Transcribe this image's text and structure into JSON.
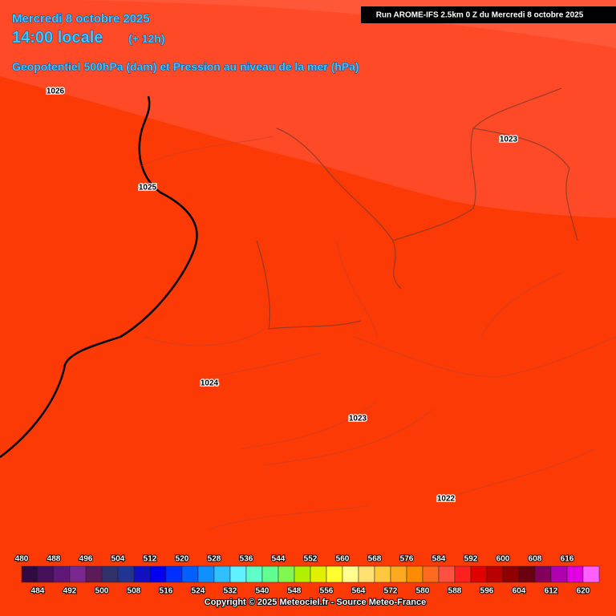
{
  "header": {
    "date": "Mercredi 8 octobre 2025",
    "time": "14:00 locale",
    "lead": "(+ 12h)",
    "subtitle": "Geopotentiel 500hPa (dam) et Pression au niveau de la mer (hPa)",
    "run": "Run AROME-IFS 2.5km 0 Z du Mercredi 8 octobre 2025"
  },
  "pressure_labels": [
    "1026",
    "1025",
    "1023",
    "1024",
    "1023",
    "1022"
  ],
  "colorbar": {
    "values": [
      480,
      484,
      488,
      492,
      496,
      500,
      504,
      508,
      512,
      516,
      520,
      524,
      528,
      532,
      536,
      540,
      544,
      548,
      552,
      556,
      560,
      564,
      568,
      572,
      576,
      580,
      584,
      588,
      592,
      596,
      600,
      604,
      608,
      612,
      616,
      620
    ],
    "colors": [
      "#300a40",
      "#48105a",
      "#601878",
      "#7a2890",
      "#5c1a58",
      "#30306a",
      "#203490",
      "#1010c0",
      "#0000ee",
      "#0030ff",
      "#0060ff",
      "#1090ff",
      "#30c0ff",
      "#60f0ff",
      "#60ffc8",
      "#60ff90",
      "#80f850",
      "#b0f000",
      "#e0f000",
      "#ffff30",
      "#ffff90",
      "#ffe070",
      "#ffc840",
      "#ffa820",
      "#ff8c00",
      "#ff6a20",
      "#ff5040",
      "#ff2020",
      "#e00000",
      "#b80000",
      "#900000",
      "#6a0010",
      "#80005a",
      "#b000b0",
      "#e000e0",
      "#ff60ff"
    ]
  },
  "footer": "Copyright © 2025 Meteociel.fr - Source Meteo-France"
}
